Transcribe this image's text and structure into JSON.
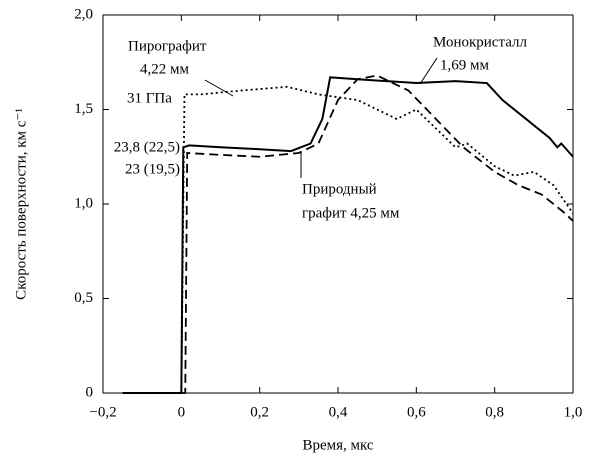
{
  "chart_data": {
    "type": "line",
    "xlabel": "Время, мкс",
    "ylabel": "Скорость поверхности, км с⁻¹",
    "xlim": [
      -0.2,
      1.0
    ],
    "xticks": [
      {
        "value": -0.2,
        "label": "−0,2"
      },
      0,
      {
        "value": 0.2,
        "label": "0,2"
      },
      {
        "value": 0.4,
        "label": "0,4"
      },
      {
        "value": 0.6,
        "label": "0,6"
      },
      {
        "value": 0.8,
        "label": "0,8"
      },
      {
        "value": 1.0,
        "label": "1,0"
      }
    ],
    "ylim": [
      0,
      2.0
    ],
    "yticks": [
      0,
      {
        "value": 0.5,
        "label": "0,5"
      },
      {
        "value": 1.0,
        "label": "1,0"
      },
      {
        "value": 1.5,
        "label": "1,5"
      },
      {
        "value": 2.0,
        "label": "2,0"
      }
    ],
    "series": [
      {
        "color": "#000000",
        "dash": "solid",
        "x": [
          -0.15,
          0.0,
          0.005,
          0.02,
          0.1,
          0.2,
          0.28,
          0.33,
          0.36,
          0.38,
          0.45,
          0.6,
          0.7,
          0.78,
          0.82,
          0.88,
          0.94,
          0.96,
          0.97,
          1.0
        ],
        "values": [
          0,
          0,
          1.3,
          1.31,
          1.3,
          1.29,
          1.28,
          1.32,
          1.45,
          1.67,
          1.66,
          1.64,
          1.65,
          1.64,
          1.55,
          1.45,
          1.35,
          1.3,
          1.32,
          1.25
        ]
      },
      {
        "color": "#000000",
        "dash": "dashed",
        "x": [
          0.0,
          0.01,
          0.015,
          0.1,
          0.2,
          0.3,
          0.35,
          0.4,
          0.45,
          0.5,
          0.58,
          0.65,
          0.72,
          0.8,
          0.86,
          0.92,
          0.98,
          1.0
        ],
        "values": [
          0,
          0,
          1.27,
          1.26,
          1.25,
          1.27,
          1.32,
          1.55,
          1.66,
          1.68,
          1.6,
          1.45,
          1.3,
          1.17,
          1.1,
          1.05,
          0.95,
          0.91
        ]
      },
      {
        "color": "#000000",
        "dash": "dotted",
        "x": [
          0.0,
          0.008,
          0.05,
          0.15,
          0.27,
          0.35,
          0.45,
          0.52,
          0.55,
          0.6,
          0.65,
          0.7,
          0.73,
          0.8,
          0.85,
          0.9,
          0.95,
          1.0
        ],
        "values": [
          0,
          1.58,
          1.58,
          1.6,
          1.62,
          1.58,
          1.55,
          1.48,
          1.45,
          1.5,
          1.4,
          1.3,
          1.32,
          1.2,
          1.15,
          1.17,
          1.1,
          0.95
        ]
      }
    ],
    "annotations": [
      "Пирографит",
      "4,22 мм",
      "31 ГПа",
      "Монокристалл",
      "1,69 мм",
      "23,8 (22,5)",
      "23 (19,5)",
      "Природный",
      "графит 4,25 мм"
    ]
  }
}
